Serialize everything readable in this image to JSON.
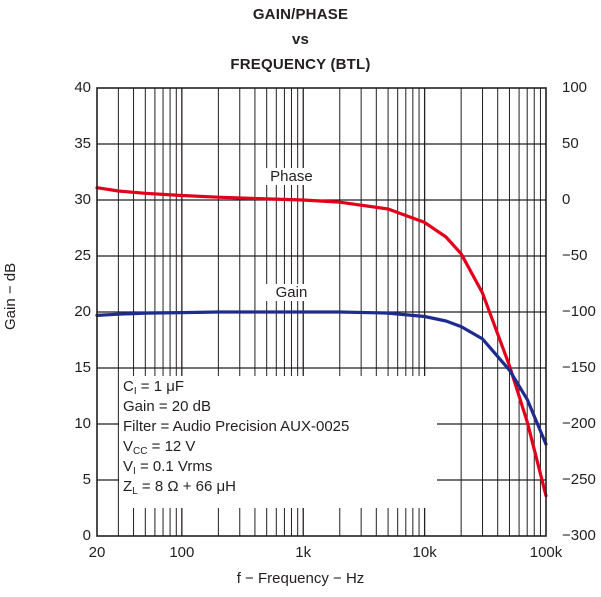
{
  "chart_data": {
    "type": "line",
    "title_lines": [
      "GAIN/PHASE",
      "vs",
      "FREQUENCY (BTL)"
    ],
    "xlabel": "f − Frequency − Hz",
    "ylabel": "Gain − dB",
    "x_scale": "log",
    "xlim": [
      20,
      100000
    ],
    "x_ticks": [
      {
        "value": 20,
        "label": "20"
      },
      {
        "value": 100,
        "label": "100"
      },
      {
        "value": 1000,
        "label": "1k"
      },
      {
        "value": 10000,
        "label": "10k"
      },
      {
        "value": 100000,
        "label": "100k"
      }
    ],
    "ylim_left": [
      0,
      40
    ],
    "y_ticks_left": [
      "0",
      "5",
      "10",
      "15",
      "20",
      "25",
      "30",
      "35",
      "40"
    ],
    "ylim_right": [
      -300,
      100
    ],
    "y_ticks_right": [
      "−300",
      "−250",
      "−200",
      "−150",
      "−100",
      "−50",
      "0",
      "50",
      "100"
    ],
    "grid": true,
    "series": [
      {
        "name": "Phase",
        "axis": "right",
        "color": "#e2001a",
        "x": [
          20,
          30,
          50,
          100,
          200,
          500,
          1000,
          2000,
          5000,
          10000,
          15000,
          20000,
          30000,
          50000,
          70000,
          100000
        ],
        "y": [
          11,
          8,
          6,
          4,
          2.5,
          1,
          0,
          -2,
          -8,
          -20,
          -33,
          -48,
          -83,
          -148,
          -198,
          -264
        ]
      },
      {
        "name": "Gain",
        "axis": "left",
        "color": "#1f2b8f",
        "x": [
          20,
          30,
          50,
          100,
          200,
          500,
          1000,
          2000,
          5000,
          10000,
          15000,
          20000,
          30000,
          50000,
          70000,
          100000
        ],
        "y": [
          19.7,
          19.8,
          19.9,
          19.95,
          20,
          20,
          20,
          20,
          19.9,
          19.6,
          19.2,
          18.7,
          17.6,
          14.8,
          12.2,
          8.2
        ]
      }
    ],
    "series_labels": {
      "phase": "Phase",
      "gain": "Gain"
    },
    "conditions": [
      {
        "main": "C",
        "sub": "I",
        "rest": " = 1 μF"
      },
      {
        "main": "Gain = 20 dB",
        "sub": "",
        "rest": ""
      },
      {
        "main": "Filter = Audio Precision AUX-0025",
        "sub": "",
        "rest": ""
      },
      {
        "main": "V",
        "sub": "CC",
        "rest": " = 12 V"
      },
      {
        "main": "V",
        "sub": "I",
        "rest": " = 0.1 Vrms"
      },
      {
        "main": "Z",
        "sub": "L",
        "rest": " = 8 Ω + 66 μH"
      }
    ]
  }
}
